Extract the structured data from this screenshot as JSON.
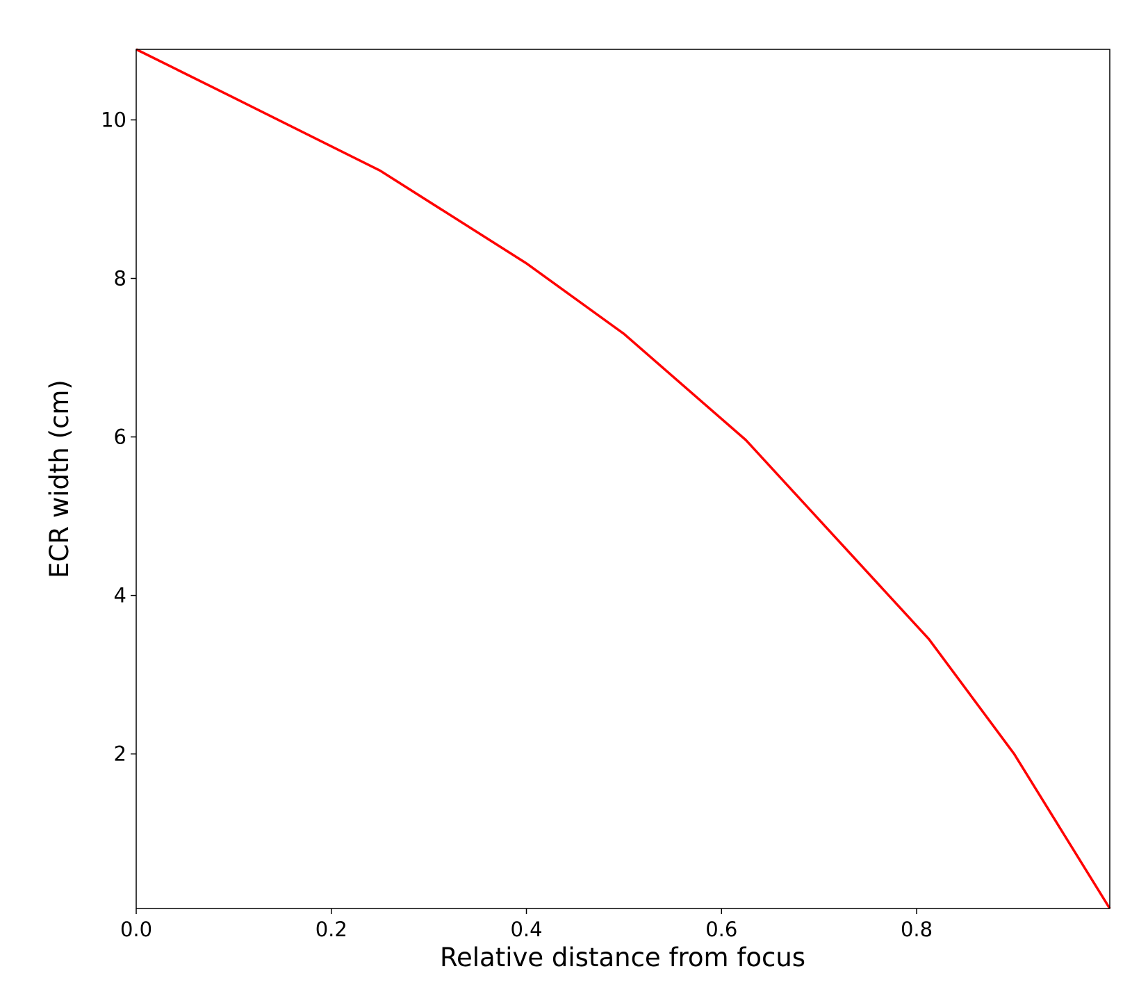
{
  "chart_data": {
    "type": "line",
    "x_label": "Relative distance from focus",
    "y_label": "ECR width (cm)",
    "x": [
      0,
      0.1,
      0.25,
      0.4,
      0.5,
      0.625,
      0.8125,
      0.9,
      0.998
    ],
    "series": [
      {
        "name": "ECR width",
        "color": "#ff0000",
        "values": [
          10.89,
          10.28,
          9.36,
          8.19,
          7.3,
          5.96,
          3.45,
          2.0,
          0.05
        ]
      }
    ],
    "xlim": [
      0,
      0.998
    ],
    "ylim": [
      0.05,
      10.89
    ],
    "xticks": [
      {
        "value": 0,
        "label": "0.0"
      },
      0.2,
      0.4,
      0.6,
      0.8
    ],
    "yticks": [
      2,
      4,
      6,
      8,
      10
    ],
    "grid": false
  }
}
